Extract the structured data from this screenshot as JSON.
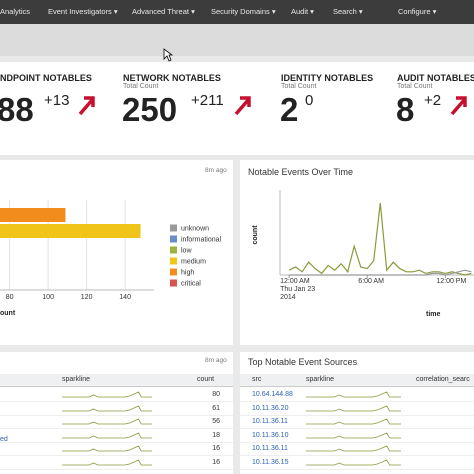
{
  "nav": {
    "items": [
      "Analytics",
      "Event Investigators ▾",
      "Advanced Threat ▾",
      "Security Domains ▾",
      "Audit ▾",
      "Search ▾",
      "Configure ▾"
    ]
  },
  "kpis": [
    {
      "title": "NDPOINT NOTABLES",
      "value": "88",
      "delta": "+13"
    },
    {
      "title": "NETWORK NOTABLES",
      "subtitle": "Total Count",
      "value": "250",
      "delta": "+211"
    },
    {
      "title": "IDENTITY NOTABLES",
      "subtitle": "Total Count",
      "value": "2",
      "delta": "0"
    },
    {
      "title": "AUDIT NOTABLES",
      "subtitle": "Total Count",
      "value": "8",
      "delta": "+2"
    }
  ],
  "severity_panel": {
    "updated": "8m ago",
    "chart_data": {
      "type": "bar",
      "orientation": "horizontal",
      "categories": [
        null,
        null
      ],
      "series": [
        {
          "name": "unknown",
          "color": "#999999",
          "values": [
            null,
            null
          ]
        },
        {
          "name": "informational",
          "color": "#6b8ec7",
          "values": [
            null,
            null
          ]
        },
        {
          "name": "low",
          "color": "#9cb33f",
          "values": [
            null,
            null
          ]
        },
        {
          "name": "medium",
          "color": "#f0c419",
          "values": [
            null,
            148
          ]
        },
        {
          "name": "high",
          "color": "#f28c1c",
          "values": [
            109,
            null
          ]
        },
        {
          "name": "critical",
          "color": "#d9534f",
          "values": [
            null,
            null
          ]
        }
      ],
      "xlim": [
        75,
        155
      ],
      "xticks": [
        80,
        100,
        120,
        140
      ],
      "xlabel": "ount",
      "grid": true
    }
  },
  "timeline_panel": {
    "title": "Notable Events Over Time",
    "chart_data": {
      "type": "line",
      "x": [
        0,
        0.5,
        1,
        1.5,
        2,
        2.5,
        3,
        3.5,
        4,
        4.5,
        5,
        5.5,
        6,
        6.5,
        7,
        7.5,
        8,
        8.5,
        9,
        9.5,
        10,
        10.5,
        11,
        11.5,
        12,
        12.5,
        13,
        13.5,
        14
      ],
      "series": [
        {
          "color": "#8a9a3c",
          "values": [
            3,
            5,
            2,
            8,
            4,
            1,
            6,
            3,
            7,
            2,
            18,
            5,
            4,
            9,
            45,
            3,
            8,
            4,
            2,
            2,
            3,
            1,
            2,
            2,
            1,
            2,
            1,
            0,
            1
          ]
        },
        {
          "color": "#999999",
          "values": [
            0,
            0,
            0,
            0,
            0,
            0,
            0,
            0,
            0,
            0,
            0,
            0,
            0,
            0,
            0,
            0,
            0,
            0,
            0,
            0,
            0,
            0,
            1,
            1,
            0,
            1,
            2,
            3,
            2
          ]
        }
      ],
      "xlim": [
        -0.7,
        14.2
      ],
      "ylim": [
        0,
        50
      ],
      "xticks": [
        {
          "value": 0,
          "label": "12:00 AM"
        },
        {
          "value": 6,
          "label": "6:00 AM"
        },
        {
          "value": 12,
          "label": "12:00 PM"
        }
      ],
      "date_label": [
        "Thu Jan 23",
        "2014"
      ],
      "ylabel": "count",
      "xlabel": "time"
    }
  },
  "left_table": {
    "updated": "8m ago",
    "columns": [
      "sparkline",
      "count"
    ],
    "counts": [
      80,
      61,
      56,
      18,
      16,
      16
    ],
    "row_fragment": "ed"
  },
  "right_table": {
    "title": "Top Notable Event Sources",
    "columns": [
      "src",
      "sparkline",
      "correlation_searc"
    ],
    "rows": [
      "10.64.144.88",
      "10.11.36.20",
      "10.11.36.11",
      "10.11.36.10",
      "10.11.36.11",
      "10.11.36.15"
    ]
  }
}
